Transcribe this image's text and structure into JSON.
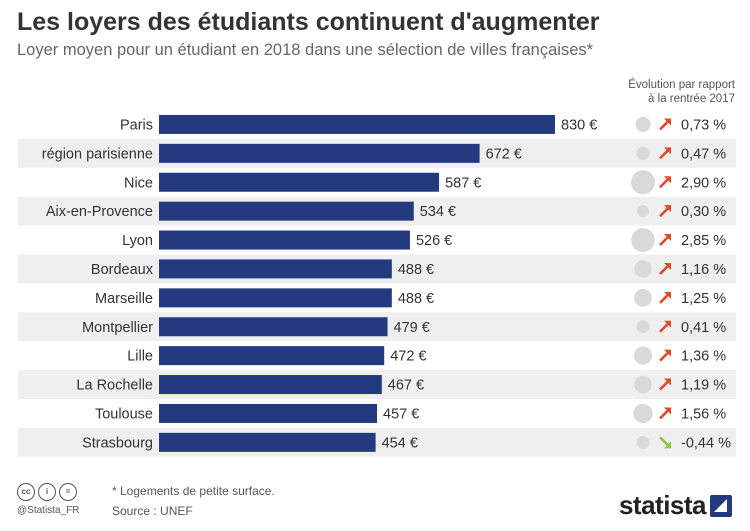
{
  "title": "Les loyers des étudiants continuent d'augmenter",
  "subtitle": "Loyer moyen pour un étudiant en 2018 dans une sélection de villes françaises*",
  "evolution_header": [
    "Évolution par rapport",
    "à la rentrée 2017"
  ],
  "footnote": "* Logements de petite surface.",
  "source": "Source : UNEF",
  "handle": "@Statista_FR",
  "brand": "statista",
  "icons": [
    "cc-icon",
    "by-icon",
    "nd-icon",
    "arrow-up-icon",
    "arrow-down-icon"
  ],
  "colors": {
    "bar": "#243a80",
    "stripe": "#efefef",
    "arrow_up": "#e04a2b",
    "arrow_down": "#8dc63f",
    "bubble": "#d9d9d9"
  },
  "chart_data": {
    "type": "bar",
    "orientation": "horizontal",
    "categories": [
      "Paris",
      "région parisienne",
      "Nice",
      "Aix-en-Provence",
      "Lyon",
      "Bordeaux",
      "Marseille",
      "Montpellier",
      "Lille",
      "La Rochelle",
      "Toulouse",
      "Strasbourg"
    ],
    "values": [
      830,
      672,
      587,
      534,
      526,
      488,
      488,
      479,
      472,
      467,
      457,
      454
    ],
    "value_labels": [
      "830 €",
      "672 €",
      "587 €",
      "534 €",
      "526 €",
      "488 €",
      "488 €",
      "479 €",
      "472 €",
      "467 €",
      "457 €",
      "454 €"
    ],
    "evolution_values": [
      0.73,
      0.47,
      2.9,
      0.3,
      2.85,
      1.16,
      1.25,
      0.41,
      1.36,
      1.19,
      1.56,
      -0.44
    ],
    "evolution_labels": [
      "0,73 %",
      "0,47 %",
      "2,90 %",
      "0,30 %",
      "2,85 %",
      "1,16 %",
      "1,25 %",
      "0,41 %",
      "1,36 %",
      "1,19 %",
      "1,56 %",
      "-0,44 %"
    ],
    "grid": false,
    "legend": "none"
  }
}
